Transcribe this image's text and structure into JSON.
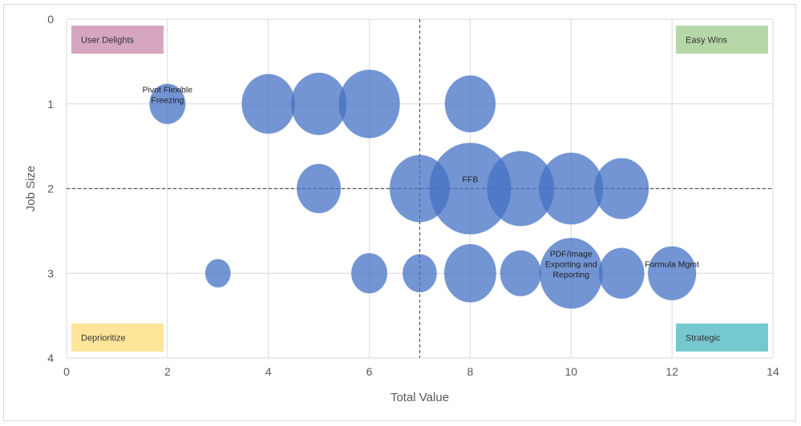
{
  "chart_data": {
    "type": "bubble",
    "xlabel": "Total Value",
    "ylabel": "Job Size",
    "xlim": [
      0,
      14
    ],
    "ylim": [
      0,
      4
    ],
    "y_reversed": true,
    "x_ticks": [
      0,
      2,
      4,
      6,
      8,
      10,
      12,
      14
    ],
    "y_ticks": [
      0,
      1,
      2,
      3,
      4
    ],
    "grid": true,
    "reference_lines": {
      "x": 7,
      "y": 2
    },
    "quadrant_labels": [
      {
        "text": "User Delights",
        "corner": "top-left",
        "color": "#d5a6bd"
      },
      {
        "text": "Easy Wins",
        "corner": "top-right",
        "color": "#b6d7a8"
      },
      {
        "text": "Deprioritize",
        "corner": "bottom-left",
        "color": "#ffe599"
      },
      {
        "text": "Strategic",
        "corner": "bottom-right",
        "color": "#76c8d0"
      }
    ],
    "bubble_color": "#4472c4",
    "points": [
      {
        "x": 2,
        "y": 1,
        "size": 1.0,
        "label": "Pivot Flexible Freezing"
      },
      {
        "x": 4,
        "y": 1,
        "size": 2.2,
        "label": ""
      },
      {
        "x": 5,
        "y": 1,
        "size": 2.4,
        "label": ""
      },
      {
        "x": 6,
        "y": 1,
        "size": 2.9,
        "label": ""
      },
      {
        "x": 8,
        "y": 1,
        "size": 2.0,
        "label": ""
      },
      {
        "x": 5,
        "y": 2,
        "size": 1.5,
        "label": ""
      },
      {
        "x": 7,
        "y": 2,
        "size": 2.8,
        "label": ""
      },
      {
        "x": 8,
        "y": 2,
        "size": 5.2,
        "label": "FFB"
      },
      {
        "x": 9,
        "y": 2,
        "size": 3.5,
        "label": ""
      },
      {
        "x": 10,
        "y": 2,
        "size": 3.2,
        "label": ""
      },
      {
        "x": 11,
        "y": 2,
        "size": 2.3,
        "label": ""
      },
      {
        "x": 3,
        "y": 3,
        "size": 0.5,
        "label": ""
      },
      {
        "x": 6,
        "y": 3,
        "size": 1.0,
        "label": ""
      },
      {
        "x": 7,
        "y": 3,
        "size": 0.9,
        "label": ""
      },
      {
        "x": 8,
        "y": 3,
        "size": 2.1,
        "label": ""
      },
      {
        "x": 9,
        "y": 3,
        "size": 1.3,
        "label": ""
      },
      {
        "x": 10,
        "y": 3,
        "size": 3.1,
        "label": "PDF/Image Exporting and Reporting"
      },
      {
        "x": 11,
        "y": 3,
        "size": 1.6,
        "label": ""
      },
      {
        "x": 12,
        "y": 3,
        "size": 1.8,
        "label": "Formula Mgmt"
      }
    ]
  }
}
